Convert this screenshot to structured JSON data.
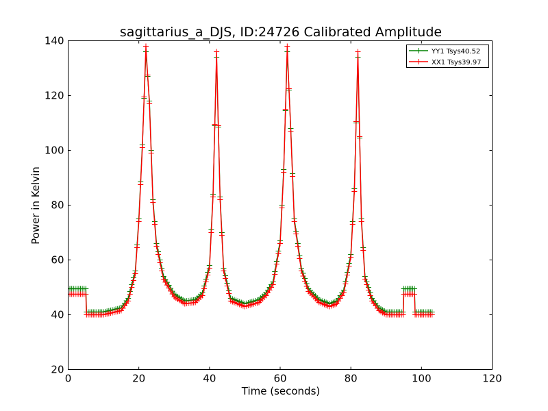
{
  "chart_data": {
    "type": "line",
    "title": "sagittarius_a_DJS, ID:24726 Calibrated Amplitude",
    "xlabel": "Time (seconds)",
    "ylabel": "Power in Kelvin",
    "xlim": [
      0,
      120
    ],
    "ylim": [
      20,
      140
    ],
    "xticks": [
      0,
      20,
      40,
      60,
      80,
      100,
      120
    ],
    "yticks": [
      20,
      40,
      60,
      80,
      100,
      120,
      140
    ],
    "grid": false,
    "legend_position": "top-right",
    "markers": "plus",
    "series": [
      {
        "name": "YY1 Tsys40.52",
        "color": "#008000",
        "x": [
          0,
          5,
          5.2,
          10,
          15,
          17,
          19,
          20,
          21,
          22,
          23,
          24,
          25,
          27,
          30,
          33,
          36,
          38,
          40,
          41,
          42,
          43,
          44,
          46,
          50,
          54,
          56,
          58,
          60,
          61,
          62,
          63,
          64,
          66,
          68,
          71,
          74,
          76,
          78,
          80,
          81,
          82,
          83,
          84,
          86,
          88,
          90,
          94.8,
          95,
          98,
          98.2,
          103
        ],
        "y": [
          49.5,
          49.5,
          41,
          41,
          42.5,
          46,
          56,
          75,
          102,
          136,
          118,
          82,
          66,
          54,
          47.5,
          45,
          45.5,
          48,
          58,
          84,
          134,
          83,
          57,
          46,
          44,
          45.5,
          48,
          52,
          67,
          93,
          136,
          108,
          75,
          57,
          49.5,
          45.5,
          44,
          45,
          49,
          62,
          86,
          134,
          75,
          54,
          46,
          42.5,
          41,
          41,
          49.5,
          49.5,
          41,
          41
        ]
      },
      {
        "name": "XX1 Tsys39.97",
        "color": "#ff0000",
        "x": [
          0,
          5,
          5.2,
          10,
          15,
          17,
          19,
          20,
          21,
          22,
          23,
          24,
          25,
          27,
          30,
          33,
          36,
          38,
          40,
          41,
          42,
          43,
          44,
          46,
          50,
          54,
          56,
          58,
          60,
          61,
          62,
          63,
          64,
          66,
          68,
          71,
          74,
          76,
          78,
          80,
          81,
          82,
          83,
          84,
          86,
          88,
          90,
          94.8,
          95,
          98,
          98.2,
          103
        ],
        "y": [
          47.5,
          47.5,
          40,
          40,
          41.5,
          45,
          55,
          74,
          101,
          138,
          117,
          81,
          65,
          53,
          46.5,
          44,
          44.5,
          47,
          57,
          83,
          136,
          82,
          56,
          45,
          43,
          44.5,
          47,
          51,
          66,
          92,
          138,
          107,
          74,
          56,
          48.5,
          44.5,
          43,
          44,
          48,
          61,
          85,
          136,
          74,
          53,
          45,
          41.5,
          40,
          40,
          47.5,
          47.5,
          40,
          40
        ]
      }
    ]
  }
}
